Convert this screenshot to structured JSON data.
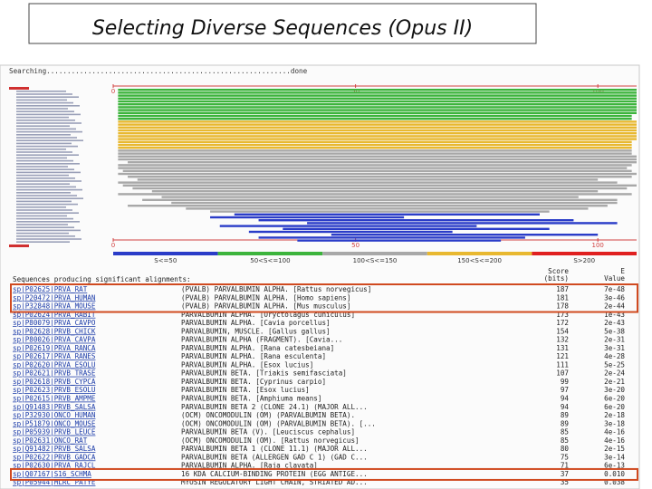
{
  "title": "Selecting Diverse Sequences (Opus II)",
  "search_status": "Searching...........................................................done",
  "overview": {
    "xlim": [
      0,
      108
    ],
    "xticks": [
      0,
      50,
      100
    ],
    "legend": [
      {
        "label": "S<=50",
        "color": "#2a3cc8"
      },
      {
        "label": "50<S<=100",
        "color": "#3cb43c"
      },
      {
        "label": "100<S<=150",
        "color": "#a8a8a8"
      },
      {
        "label": "150<S<=200",
        "color": "#e8b830"
      },
      {
        "label": "S>200",
        "color": "#e02020"
      }
    ],
    "hits": [
      [
        1,
        108,
        1
      ],
      [
        1,
        108,
        1
      ],
      [
        1,
        108,
        1
      ],
      [
        1,
        108,
        1
      ],
      [
        1,
        108,
        1
      ],
      [
        1,
        108,
        1
      ],
      [
        1,
        108,
        1
      ],
      [
        1,
        108,
        1
      ],
      [
        1,
        108,
        1
      ],
      [
        1,
        107,
        1
      ],
      [
        1,
        107,
        1
      ],
      [
        1,
        108,
        3
      ],
      [
        1,
        108,
        3
      ],
      [
        1,
        108,
        3
      ],
      [
        1,
        108,
        3
      ],
      [
        1,
        108,
        3
      ],
      [
        1,
        108,
        3
      ],
      [
        1,
        108,
        3
      ],
      [
        1,
        107,
        3
      ],
      [
        1,
        107,
        3
      ],
      [
        1,
        107,
        3
      ],
      [
        1,
        107,
        2
      ],
      [
        1,
        107,
        2
      ],
      [
        1,
        108,
        2
      ],
      [
        1,
        108,
        2
      ],
      [
        3,
        108,
        2
      ],
      [
        1,
        107,
        2
      ],
      [
        1,
        106,
        2
      ],
      [
        2,
        107,
        2
      ],
      [
        1,
        108,
        2
      ],
      [
        3,
        107,
        2
      ],
      [
        5,
        100,
        2
      ],
      [
        1,
        104,
        2
      ],
      [
        2,
        108,
        2
      ],
      [
        4,
        106,
        2
      ],
      [
        8,
        100,
        2
      ],
      [
        1,
        107,
        2
      ],
      [
        10,
        96,
        2
      ],
      [
        6,
        104,
        2
      ],
      [
        12,
        104,
        2
      ],
      [
        3,
        102,
        2
      ],
      [
        15,
        98,
        2
      ],
      [
        20,
        90,
        2
      ],
      [
        25,
        88,
        0
      ],
      [
        20,
        60,
        0
      ],
      [
        30,
        95,
        0
      ],
      [
        40,
        104,
        0
      ],
      [
        22,
        75,
        0
      ],
      [
        35,
        90,
        0
      ],
      [
        28,
        70,
        0
      ],
      [
        45,
        100,
        0
      ],
      [
        30,
        85,
        0
      ],
      [
        38,
        80,
        0
      ]
    ]
  },
  "table": {
    "heading": "Sequences producing significant alignments:",
    "score_header": [
      "Score",
      "(bits)"
    ],
    "evalue_header": [
      "E",
      "Value"
    ],
    "highlighted_rows": [
      [
        0,
        2
      ],
      [
        22,
        22
      ]
    ],
    "rows": [
      [
        "sp|P02625|PRVA_RAT",
        "(PVALB) PARVALBUMIN ALPHA. [Rattus norvegicus]",
        "187",
        "7e-48"
      ],
      [
        "sp|P20472|PRVA_HUMAN",
        "(PVALB) PARVALBUMIN ALPHA. [Homo sapiens]",
        "181",
        "3e-46"
      ],
      [
        "sp|P32848|PRVA_MOUSE",
        "(PVALB) PARVALBUMIN ALPHA. [Mus musculus]",
        "178",
        "2e-44"
      ],
      [
        "sp|P02624|PRVA_RABIT",
        "PARVALBUMIN ALPHA. [Oryctolagus cuniculus]",
        "173",
        "1e-43"
      ],
      [
        "sp|P80079|PRVA_CAVPO",
        "PARVALBUMIN ALPHA. [Cavia porcellus]",
        "172",
        "2e-43"
      ],
      [
        "sp|P02628|PRVB_CHICK",
        "PARVALBUMIN, MUSCLE. [Gallus gallus]",
        "154",
        "5e-38"
      ],
      [
        "sp|P80026|PRVA_CAVPA",
        "PARVALBUMIN ALPHA (FRAGMENT). [Cavia...",
        "132",
        "2e-31"
      ],
      [
        "sp|P02619|PRVA_RANCA",
        "PARVALBUMIN ALPHA. [Rana catesbeiana]",
        "131",
        "3e-31"
      ],
      [
        "sp|P02617|PRVA_RANES",
        "PARVALBUMIN ALPHA. [Rana esculenta]",
        "121",
        "4e-28"
      ],
      [
        "sp|P02620|PRVA_ESOLU",
        "PARVALBUMIN ALPHA. [Esox lucius]",
        "111",
        "5e-25"
      ],
      [
        "sp|P02621|PRVB_TRASE",
        "PARVALBUMIN BETA. [Triakis semifasciata]",
        "107",
        "2e-24"
      ],
      [
        "sp|P02618|PRVB_CYPCA",
        "PARVALBUMIN BETA. [Cyprinus carpio]",
        "99",
        "2e-21"
      ],
      [
        "sp|P02623|PRVB_ESOLU",
        "PARVALBUMIN BETA. [Esox lucius]",
        "97",
        "3e-20"
      ],
      [
        "sp|P02615|PRVB_AMPME",
        "PARVALBUMIN BETA. [Amphiuma means]",
        "94",
        "6e-20"
      ],
      [
        "sp|Q91483|PRVB_SALSA",
        "PARVALBUMIN BETA 2 (CLONE 24.1) (MAJOR ALL...",
        "94",
        "6e-20"
      ],
      [
        "sp|P32930|ONCO_HUMAN",
        "(OCM) ONCOMODULIN (OM) (PARVALBUMIN BETA).",
        "89",
        "2e-18"
      ],
      [
        "sp|P51879|ONCO_MOUSE",
        "(OCM) ONCOMODULIN (OM) (PARVALBUMIN BETA). [...",
        "89",
        "3e-18"
      ],
      [
        "sp|P05939|PRVB_LEUCE",
        "PARVALBUMIN BETA (V). [Leuciscus cephalus]",
        "85",
        "4e-16"
      ],
      [
        "sp|P02631|ONCO_RAT",
        "(OCM) ONCOMODULIN (OM). [Rattus norvegicus]",
        "85",
        "4e-16"
      ],
      [
        "sp|Q91482|PRVB_SALSA",
        "PARVALBUMIN BETA 1 (CLONE 11.1) (MAJOR ALL...",
        "80",
        "2e-15"
      ],
      [
        "sp|P02622|PRVB_GADCA",
        "PARVALBUMIN BETA (ALLERGEN GAD C 1) (GAD C...",
        "75",
        "3e-14"
      ],
      [
        "sp|P02630|PRVA_RAJCL",
        "PARVALBUMIN ALPHA. [Raja clavata]",
        "71",
        "6e-13"
      ],
      [
        "sp|Q07167|S16_SCHMA",
        "16 KDA CALCIUM-BINDING PROTEIN (EGG ANTIGE...",
        "37",
        "0.010"
      ],
      [
        "sp|P05944|MLRC_PATYE",
        "MYOSIN REGULATORY LIGHT CHAIN, STRIATED AD...",
        "35",
        "0.038"
      ]
    ]
  }
}
